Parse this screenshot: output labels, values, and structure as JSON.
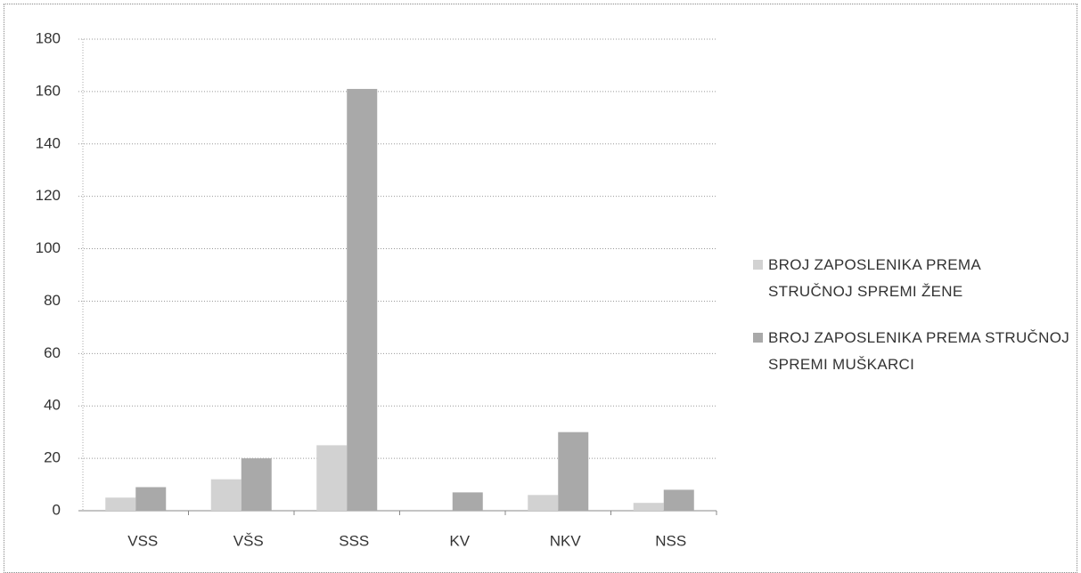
{
  "chart_data": {
    "type": "bar",
    "categories": [
      "VSS",
      "VŠS",
      "SSS",
      "KV",
      "NKV",
      "NSS"
    ],
    "series": [
      {
        "name": "BROJ ZAPOSLENIKA PREMA STRUČNOJ SPREMI ŽENE",
        "color": "#d2d2d2",
        "values": [
          5,
          12,
          25,
          0,
          6,
          3
        ]
      },
      {
        "name": "BROJ ZAPOSLENIKA PREMA STRUČNOJ SPREMI MUŠKARCI",
        "color": "#a9a9a9",
        "values": [
          9,
          20,
          161,
          7,
          30,
          8
        ]
      }
    ],
    "ylim": [
      0,
      180
    ],
    "yticks": [
      0,
      20,
      40,
      60,
      80,
      100,
      120,
      140,
      160,
      180
    ],
    "grid": true,
    "legend": "right"
  }
}
